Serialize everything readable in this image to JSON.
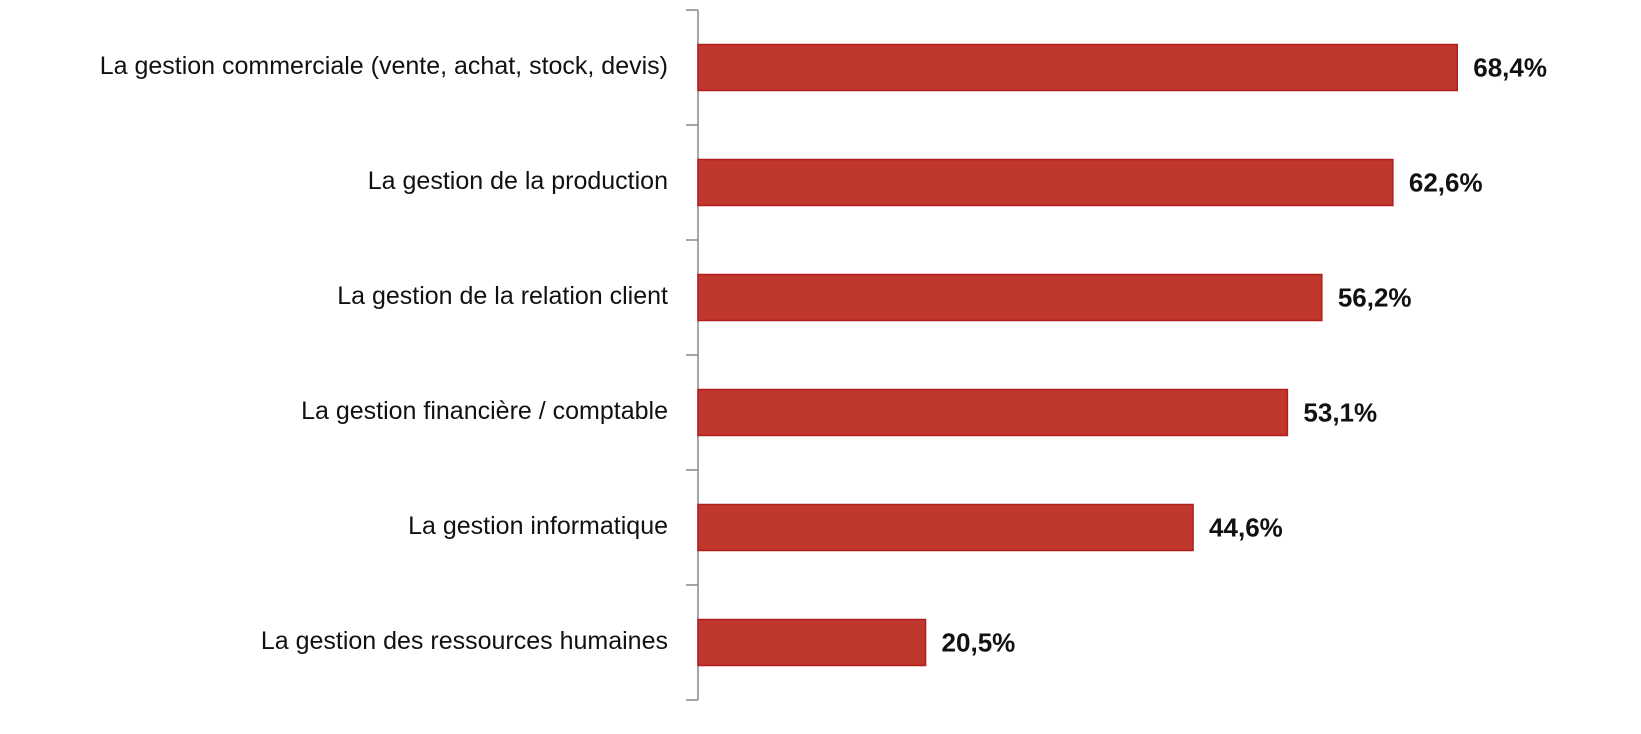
{
  "chart_data": {
    "type": "hbar",
    "categories": [
      "La gestion commerciale (vente, achat, stock, devis)",
      "La gestion de la production",
      "La gestion de la relation client",
      "La gestion financière / comptable",
      "La gestion informatique",
      "La gestion des ressources humaines"
    ],
    "values": [
      68.4,
      62.6,
      56.2,
      53.1,
      44.6,
      20.5
    ],
    "value_labels": [
      "68,4%",
      "62,6%",
      "56,2%",
      "53,1%",
      "44,6%",
      "20,5%"
    ],
    "color": "#c0372d"
  }
}
